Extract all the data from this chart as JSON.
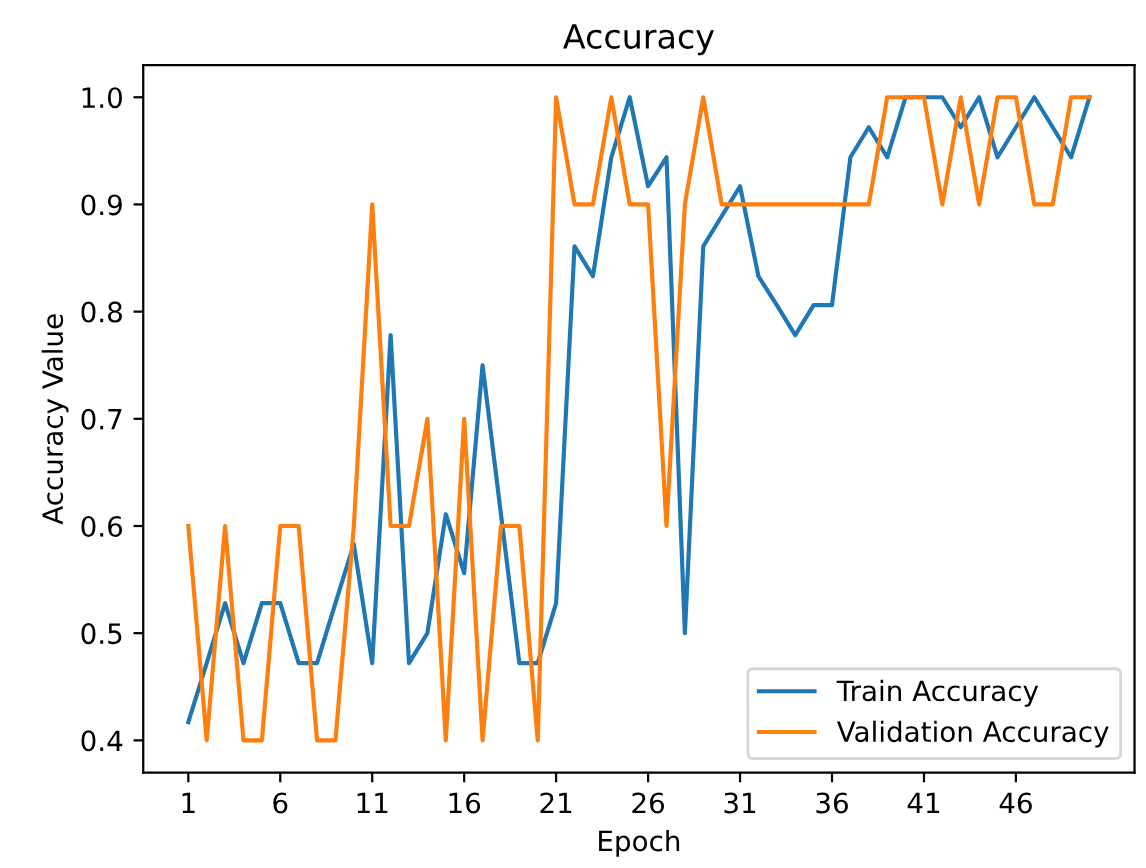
{
  "chart_data": {
    "type": "line",
    "title": "Accuracy",
    "xlabel": "Epoch",
    "ylabel": "Accuracy Value",
    "x": [
      1,
      2,
      3,
      4,
      5,
      6,
      7,
      8,
      9,
      10,
      11,
      12,
      13,
      14,
      15,
      16,
      17,
      18,
      19,
      20,
      21,
      22,
      23,
      24,
      25,
      26,
      27,
      28,
      29,
      30,
      31,
      32,
      33,
      34,
      35,
      36,
      37,
      38,
      39,
      40,
      41,
      42,
      43,
      44,
      45,
      46,
      47,
      48,
      49,
      50
    ],
    "series": [
      {
        "name": "Train Accuracy",
        "color": "#1f77b4",
        "values": [
          0.417,
          0.472,
          0.528,
          0.472,
          0.528,
          0.528,
          0.472,
          0.472,
          0.528,
          0.583,
          0.472,
          0.778,
          0.472,
          0.5,
          0.611,
          0.556,
          0.75,
          0.611,
          0.472,
          0.472,
          0.528,
          0.861,
          0.833,
          0.944,
          1.0,
          0.917,
          0.944,
          0.5,
          0.861,
          0.889,
          0.917,
          0.833,
          0.806,
          0.778,
          0.806,
          0.806,
          0.944,
          0.972,
          0.944,
          1.0,
          1.0,
          1.0,
          0.972,
          1.0,
          0.944,
          0.972,
          1.0,
          0.972,
          0.944,
          1.0
        ]
      },
      {
        "name": "Validation Accuracy",
        "color": "#ff7f0e",
        "values": [
          0.6,
          0.4,
          0.6,
          0.4,
          0.4,
          0.6,
          0.6,
          0.4,
          0.4,
          0.6,
          0.9,
          0.6,
          0.6,
          0.7,
          0.4,
          0.7,
          0.4,
          0.6,
          0.6,
          0.4,
          1.0,
          0.9,
          0.9,
          1.0,
          0.9,
          0.9,
          0.6,
          0.9,
          1.0,
          0.9,
          0.9,
          0.9,
          0.9,
          0.9,
          0.9,
          0.9,
          0.9,
          0.9,
          1.0,
          1.0,
          1.0,
          0.9,
          1.0,
          0.9,
          1.0,
          1.0,
          0.9,
          0.9,
          1.0,
          1.0
        ]
      }
    ],
    "xlim": [
      -1.45,
      52.45
    ],
    "ylim": [
      0.37,
      1.03
    ],
    "xticks": [
      1,
      6,
      11,
      16,
      21,
      26,
      31,
      36,
      41,
      46
    ],
    "yticks": [
      0.4,
      0.5,
      0.6,
      0.7,
      0.8,
      0.9,
      {
        "value": 1.0,
        "label": "1.0"
      }
    ],
    "legend": "bottom right",
    "grid": false,
    "marker": "none",
    "line_style": "solid"
  }
}
